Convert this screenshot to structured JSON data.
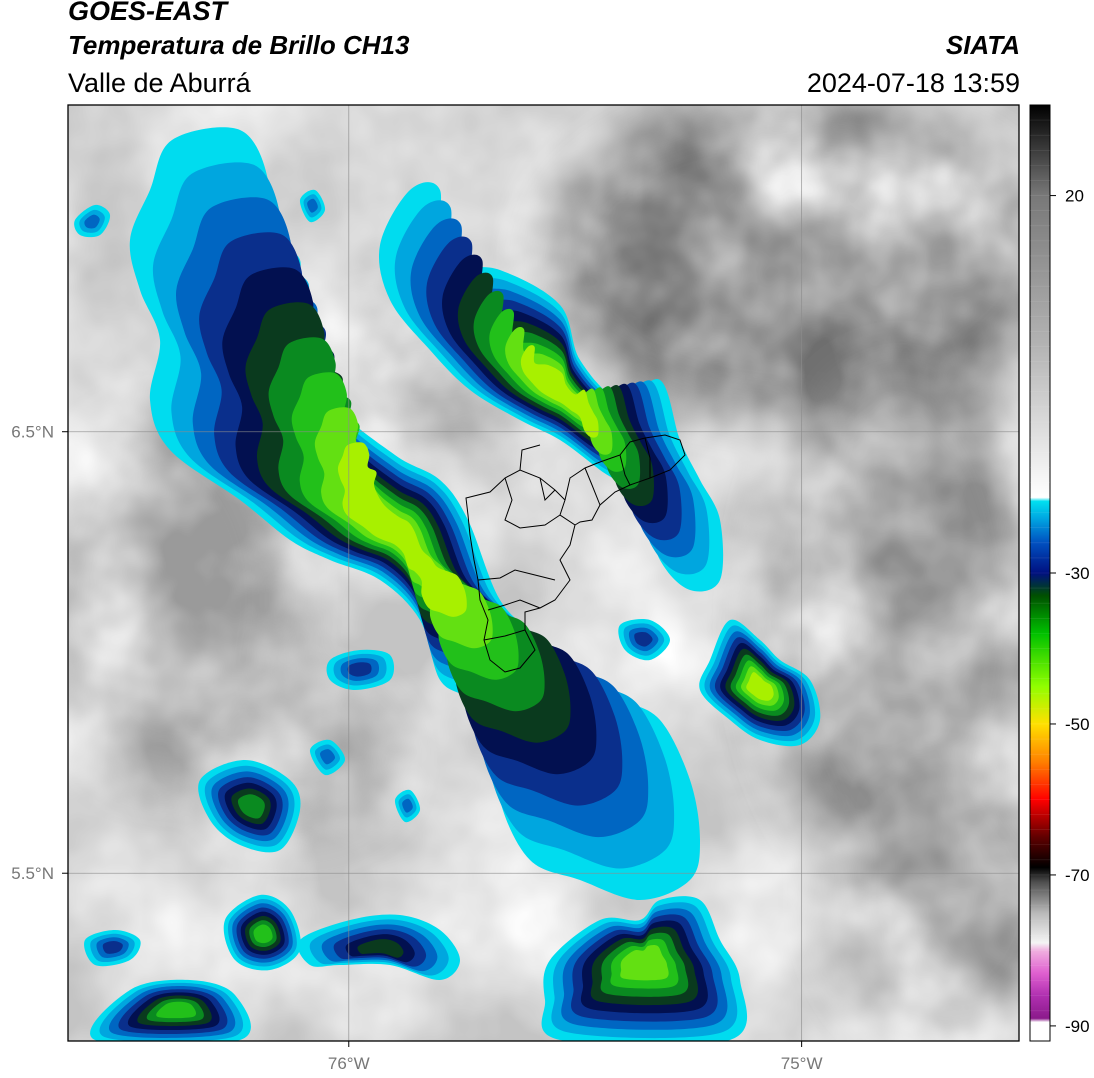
{
  "header": {
    "satellite": "GOES-EAST",
    "product": "Temperatura de Brillo CH13",
    "region": "Valle de Aburrá",
    "organization": "SIATA",
    "timestamp": "2024-07-18 13:59"
  },
  "map": {
    "lon_range": [
      -76.62,
      -74.52
    ],
    "lat_range": [
      5.12,
      7.24
    ],
    "gridlines": true,
    "lon_ticks": [
      {
        "value": -76,
        "label": "76°W"
      },
      {
        "value": -75,
        "label": "75°W"
      }
    ],
    "lat_ticks": [
      {
        "value": 6.5,
        "label": "6.5°N"
      },
      {
        "value": 5.5,
        "label": "5.5°N"
      }
    ],
    "colorbar": {
      "vmin": -92,
      "vmax": 32,
      "ticks": [
        {
          "value": 20,
          "label": "20"
        },
        {
          "value": -30,
          "label": "-30"
        },
        {
          "value": -50,
          "label": "-50"
        },
        {
          "value": -70,
          "label": "-70"
        },
        {
          "value": -90,
          "label": "-90"
        }
      ],
      "color_stops": [
        {
          "value": -92,
          "color": "#ffffff"
        },
        {
          "value": -89.5,
          "color": "#ffffff"
        },
        {
          "value": -89,
          "color": "#8b1a8b"
        },
        {
          "value": -86,
          "color": "#b030b0"
        },
        {
          "value": -83,
          "color": "#e060d0"
        },
        {
          "value": -80,
          "color": "#f0b0e0"
        },
        {
          "value": -79,
          "color": "#f4f4f4"
        },
        {
          "value": -75,
          "color": "#b8b8b8"
        },
        {
          "value": -71,
          "color": "#505050"
        },
        {
          "value": -69,
          "color": "#000000"
        },
        {
          "value": -65,
          "color": "#600000"
        },
        {
          "value": -60,
          "color": "#ff0000"
        },
        {
          "value": -55,
          "color": "#ff8000"
        },
        {
          "value": -50,
          "color": "#ffe000"
        },
        {
          "value": -45,
          "color": "#90ff00"
        },
        {
          "value": -38,
          "color": "#00c000"
        },
        {
          "value": -33,
          "color": "#005000"
        },
        {
          "value": -30,
          "color": "#001080"
        },
        {
          "value": -26,
          "color": "#0050c0"
        },
        {
          "value": -23,
          "color": "#00a0e0"
        },
        {
          "value": -20.5,
          "color": "#00e0f0"
        },
        {
          "value": -20,
          "color": "#ffffff"
        },
        {
          "value": 0,
          "color": "#b4b4b4"
        },
        {
          "value": 20,
          "color": "#787878"
        },
        {
          "value": 32,
          "color": "#000000"
        }
      ]
    }
  }
}
